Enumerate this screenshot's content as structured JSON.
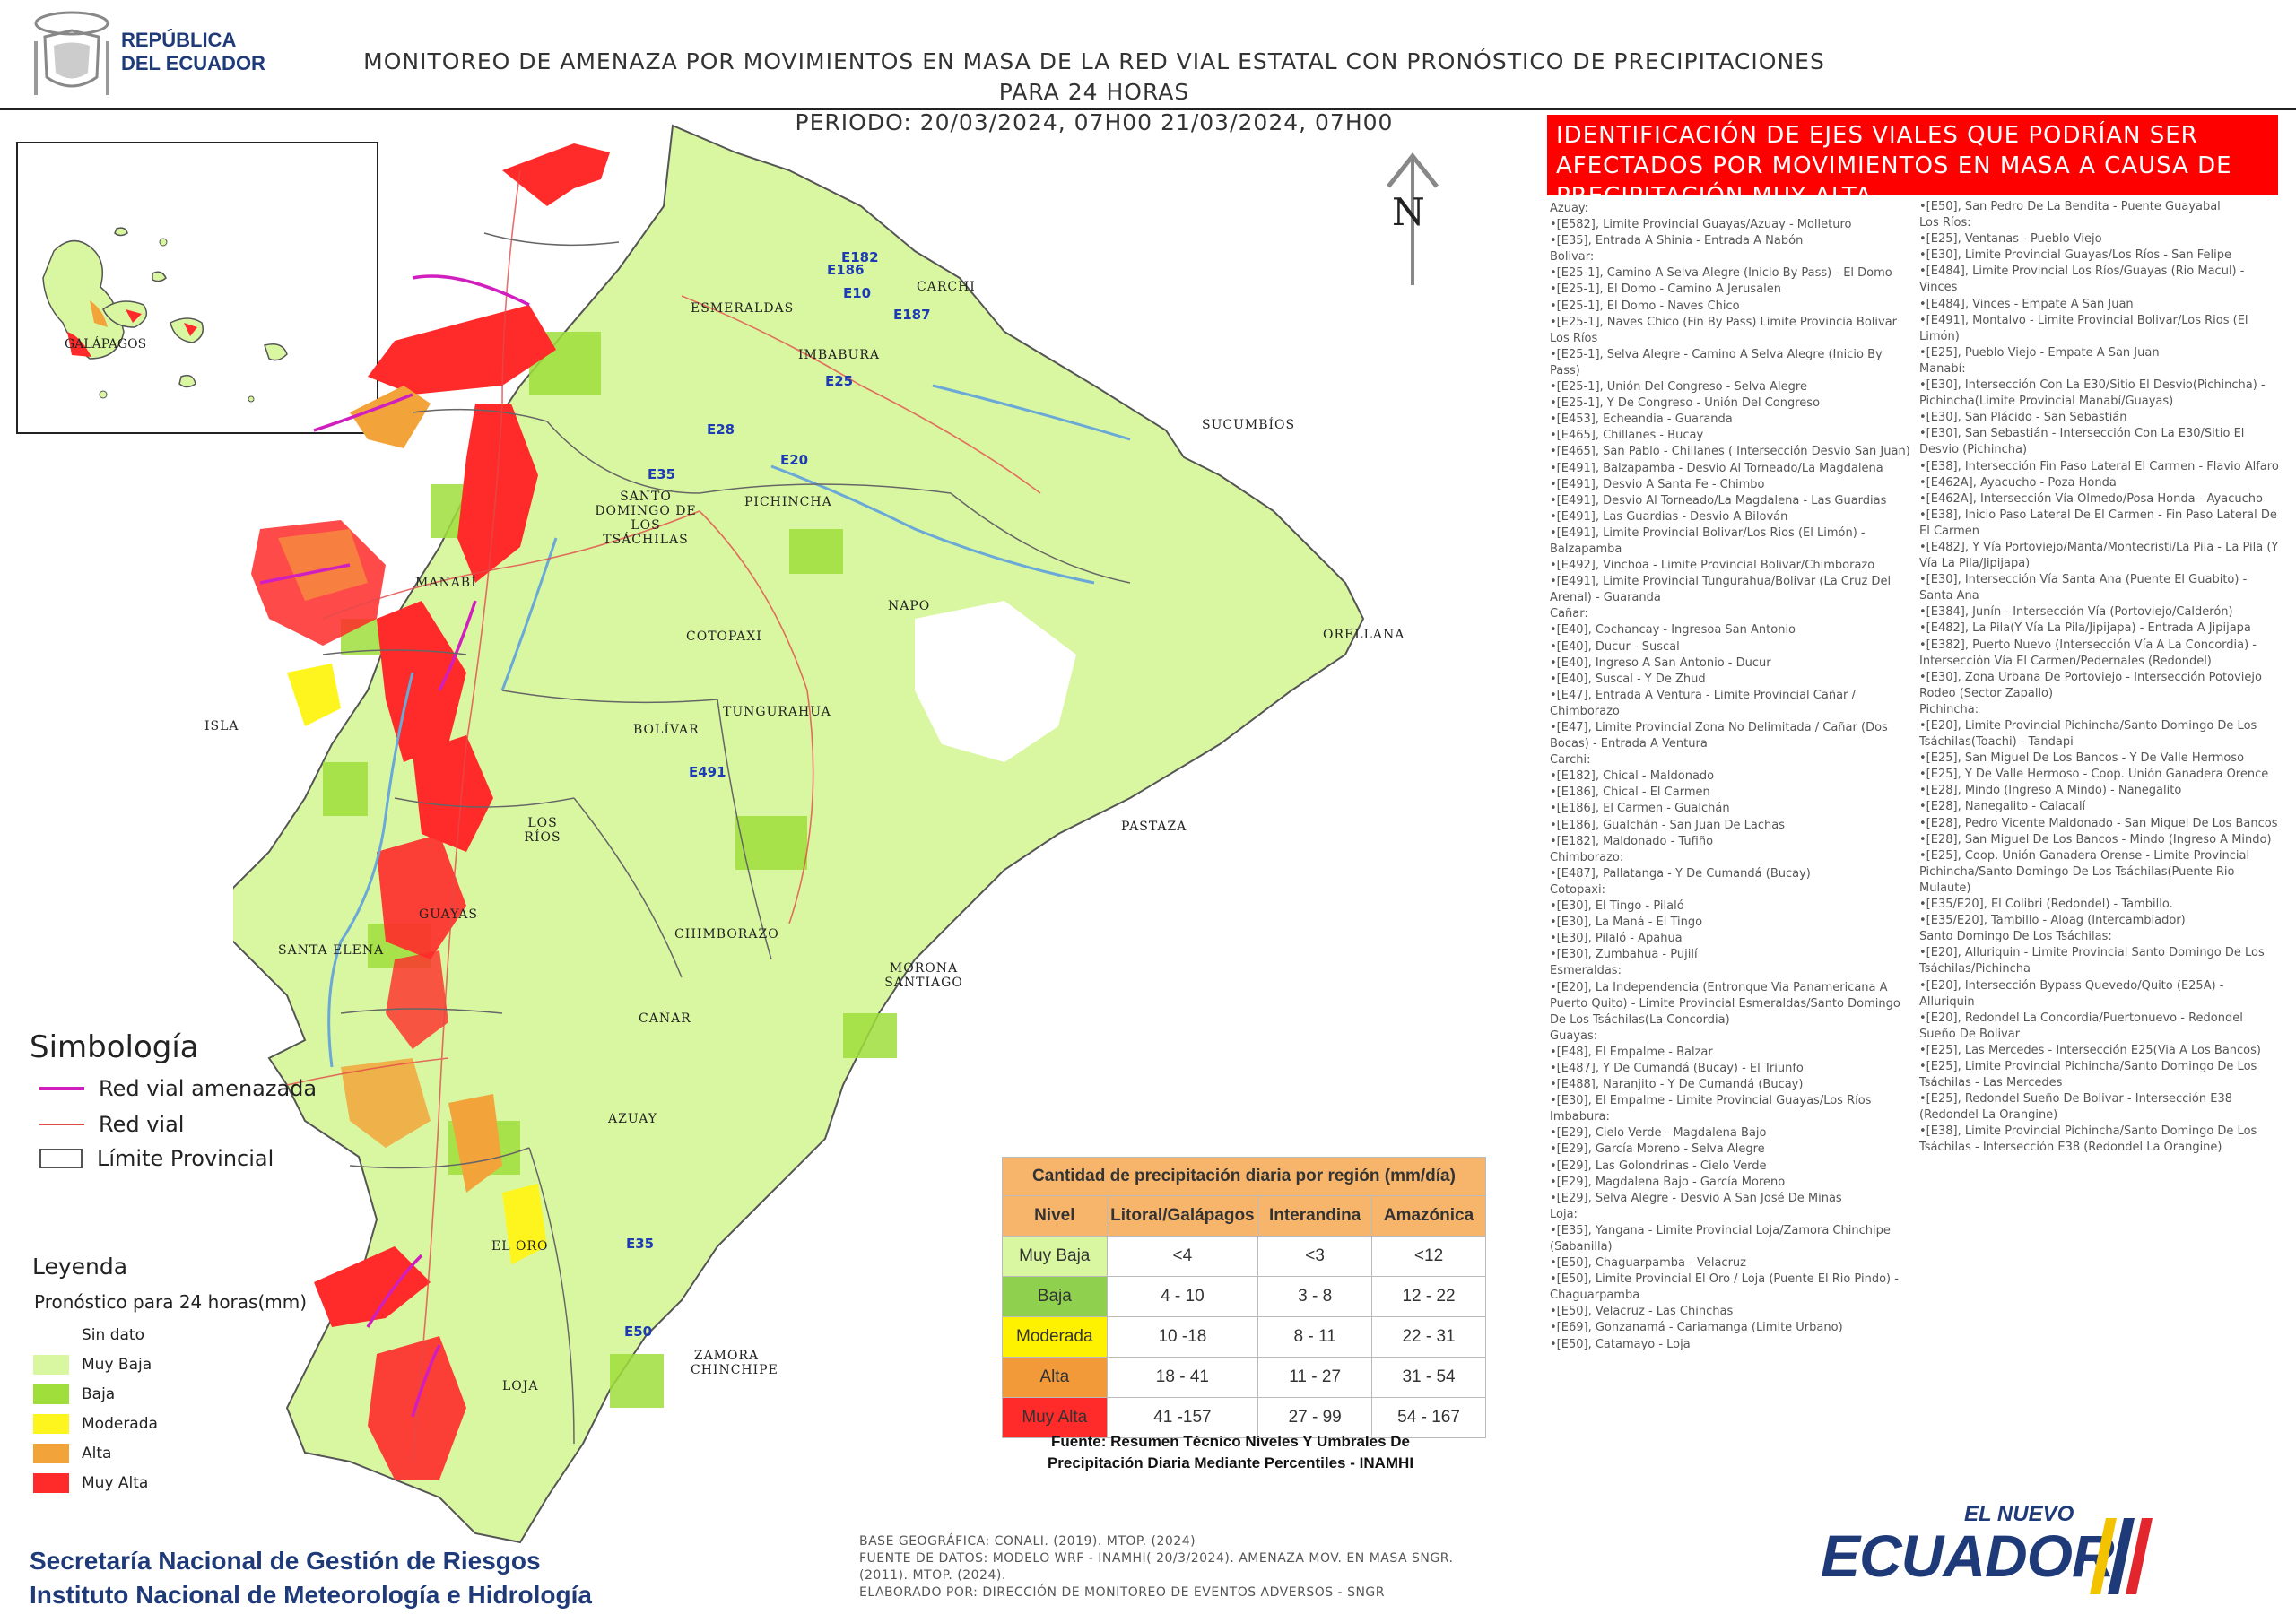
{
  "header": {
    "country_line1": "REPÚBLICA",
    "country_line2": "DEL ECUADOR",
    "title_line1": "MONITOREO DE AMENAZA POR MOVIMIENTOS EN MASA DE LA RED VIAL  ESTATAL  CON PRONÓSTICO  DE  PRECIPITACIONES PARA 24 HORAS",
    "title_line2": "PERIODO: 20/03/2024, 07H00 21/03/2024, 07H00"
  },
  "north_label": "N",
  "inset_label": "GALÁPAGOS",
  "provinces": [
    "ESMERALDAS",
    "CARCHI",
    "IMBABURA",
    "SUCUMBÍOS",
    "SANTO DOMINGO DE LOS TSÁCHILAS",
    "PICHINCHA",
    "MANABÍ",
    "NAPO",
    "ORELLANA",
    "COTOPAXI",
    "ISLA",
    "BOLÍVAR",
    "TUNGURAHUA",
    "LOS RÍOS",
    "PASTAZA",
    "SANTA ELENA",
    "GUAYAS",
    "CHIMBORAZO",
    "MORONA SANTIAGO",
    "CAÑAR",
    "AZUAY",
    "EL ORO",
    "LOJA",
    "ZAMORA CHINCHIPE"
  ],
  "road_labels": [
    "E182",
    "E186",
    "E10",
    "E187",
    "E28",
    "E35",
    "E20",
    "E491",
    "E25",
    "E50",
    "E35"
  ],
  "side_panel": {
    "title": "IDENTIFICACIÓN DE EJES VIALES QUE PODRÍAN SER AFECTADOS POR MOVIMIENTOS EN MASA A CAUSA DE PRECIPITACIÓN MUY ALTA",
    "col1": [
      "Azuay:",
      "•[E582], Limite Provincial Guayas/Azuay - Molleturo",
      "•[E35], Entrada A Shinia - Entrada A Nabón",
      "Bolivar:",
      "•[E25-1], Camino A Selva Alegre (Inicio By Pass) - El Domo",
      "•[E25-1], El Domo - Camino A Jerusalen",
      "•[E25-1], El Domo - Naves Chico",
      "•[E25-1], Naves Chico (Fin By Pass) Limite Provincia Bolivar Los Ríos",
      "•[E25-1], Selva Alegre - Camino A Selva Alegre (Inicio By Pass)",
      "•[E25-1], Unión Del Congreso - Selva  Alegre",
      "•[E25-1], Y De Congreso - Unión Del Congreso",
      "•[E453], Echeandia - Guaranda",
      "•[E465], Chillanes - Bucay",
      "•[E465], San Pablo - Chillanes ( Intersección Desvio San Juan)",
      "•[E491], Balzapamba - Desvio Al Torneado/La Magdalena",
      "•[E491], Desvio A Santa Fe - Chimbo",
      "•[E491], Desvio Al Torneado/La Magdalena - Las Guardias",
      "•[E491], Las Guardias - Desvio A Bilován",
      "•[E491], Limite Provincial Bolivar/Los Rios (El Limón) - Balzapamba",
      "•[E492], Vinchoa - Limite Provincial Bolivar/Chimborazo",
      "•[E491], Limite Provincial Tungurahua/Bolivar (La Cruz Del Arenal) - Guaranda",
      "Cañar:",
      "•[E40], Cochancay - Ingresoa San Antonio",
      "•[E40], Ducur - Suscal",
      "•[E40], Ingreso A San Antonio - Ducur",
      "•[E40], Suscal - Y De Zhud",
      "•[E47], Entrada A Ventura -  Limite Provincial Cañar / Chimborazo",
      "•[E47], Limite Provincial Zona No Delimitada / Cañar (Dos Bocas) - Entrada  A Ventura",
      "Carchi:",
      "•[E182], Chical - Maldonado",
      "•[E186], Chical - El Carmen",
      "•[E186], El Carmen - Gualchán",
      "•[E186], Gualchán - San Juan De Lachas",
      "•[E182], Maldonado - Tufiño",
      "Chimborazo:",
      "•[E487], Pallatanga - Y De Cumandá (Bucay)",
      "Cotopaxi:",
      "•[E30], El Tingo - Pilaló",
      "•[E30], La Maná - El Tingo",
      "•[E30], Pilaló - Apahua",
      "•[E30], Zumbahua - Pujilí",
      "Esmeraldas:",
      "•[E20], La Independencia (Entronque Via Panamericana A Puerto Quito) - Limite Provincial Esmeraldas/Santo Domingo De Los Tsáchilas(La Concordia)",
      "Guayas:",
      "•[E48], El Empalme - Balzar",
      "•[E487], Y De Cumandá (Bucay) - El Triunfo",
      "•[E488], Naranjito - Y De Cumandá (Bucay)",
      "•[E30], El Empalme - Limite Provincial Guayas/Los Ríos",
      "Imbabura:",
      "•[E29], Cielo Verde - Magdalena Bajo",
      "•[E29], García Moreno - Selva  Alegre",
      "•[E29], Las Golondrinas - Cielo Verde",
      "•[E29], Magdalena Bajo - García Moreno",
      "•[E29], Selva  Alegre - Desvio  A San José De Minas",
      "Loja:",
      "•[E35], Yangana - Limite Provincial Loja/Zamora Chinchipe (Sabanilla)",
      "•[E50], Chaguarpamba - Velacruz",
      "•[E50], Limite Provincial El Oro / Loja (Puente El Rio Pindo) - Chaguarpamba",
      "•[E50], Velacruz - Las Chinchas",
      "•[E69], Gonzanamá - Cariamanga (Limite Urbano)",
      "•[E50], Catamayo - Loja"
    ],
    "col2": [
      "•[E50], San Pedro De La Bendita - Puente Guayabal",
      "Los Ríos:",
      "•[E25], Ventanas - Pueblo Viejo",
      "•[E30], Limite Provincial Guayas/Los Ríos - San Felipe",
      "•[E484], Limite Provincial Los Ríos/Guayas (Rio Macul) - Vinces",
      "•[E484], Vinces - Empate A San Juan",
      "•[E491], Montalvo - Limite Provincial Bolivar/Los Rios (El Limón)",
      "•[E25], Pueblo Viejo - Empate A San Juan",
      "Manabí:",
      "•[E30], Intersección Con La E30/Sitio El Desvio(Pichincha) - Pichincha(Limite Provincial Manabí/Guayas)",
      "•[E30], San Plácido - San Sebastián",
      "•[E30], San Sebastián - Intersección Con La E30/Sitio El Desvio (Pichincha)",
      "•[E38], Intersección Fin Paso Lateral El Carmen - Flavio Alfaro",
      "•[E462A], Ayacucho - Poza Honda",
      "•[E462A], Intersección Vía Olmedo/Posa Honda - Ayacucho",
      "•[E38], Inicio Paso Lateral De El Carmen - Fin Paso Lateral De El Carmen",
      "•[E482], Y Vía Portoviejo/Manta/Montecristi/La Pila - La Pila (Y Vía La Pila/Jipijapa)",
      "•[E30], Intersección Vía Santa Ana (Puente El Guabito) - Santa Ana",
      "•[E384], Junín - Intersección Vía (Portoviejo/Calderón)",
      "•[E482], La Pila(Y Vía La Pila/Jipijapa) - Entrada A Jipijapa",
      "•[E382], Puerto Nuevo (Intersección Vía A La Concordia) - Intersección Vía El Carmen/Pedernales (Redondel)",
      "•[E30], Zona Urbana De Portoviejo - Intersección Potoviejo Rodeo (Sector Zapallo)",
      "Pichincha:",
      "•[E20], Limite Provincial Pichincha/Santo Domingo De Los Tsáchilas(Toachi) - Tandapi",
      "•[E25], San Miguel De Los Bancos - Y De Valle Hermoso",
      "•[E25], Y De Valle Hermoso - Coop. Unión Ganadera Orence",
      "•[E28], Mindo (Ingreso A Mindo) - Nanegalito",
      "•[E28], Nanegalito - Calacalí",
      "•[E28], Pedro Vicente Maldonado - San Miguel De Los Bancos",
      "•[E28], San Miguel De Los Bancos - Mindo (Ingreso A Mindo)",
      "•[E25], Coop. Unión Ganadera Orense - Limite Provincial Pichincha/Santo Domingo De Los Tsáchilas(Puente Rio Mulaute)",
      "•[E35/E20], El Colibri (Redondel) - Tambillo.",
      "•[E35/E20], Tambillo - Aloag (Intercambiador)",
      "Santo Domingo De Los Tsáchilas:",
      "•[E20], Alluriquin - Limite Provincial Santo Domingo De Los Tsáchilas/Pichincha",
      "•[E20], Intersección Bypass Quevedo/Quito (E25A) - Alluriquin",
      "•[E20], Redondel La Concordia/Puertonuevo - Redondel Sueño De Bolivar",
      "•[E25], Las Mercedes - Intersección E25(Via A Los Bancos)",
      "•[E25], Limite Provincial Pichincha/Santo Domingo De Los Tsáchilas - Las Mercedes",
      "•[E25], Redondel Sueño De Bolivar - Intersección E38 (Redondel La Orangine)",
      "•[E38], Limite Provincial Pichincha/Santo Domingo De Los Tsáchilas - Intersección E38 (Redondel La Orangine)"
    ]
  },
  "simbologia": {
    "title": "Simbología",
    "items": [
      "Red vial amenazada",
      "Red vial",
      "Límite Provincial"
    ],
    "colors": [
      "#d11fbf",
      "#e34a4a",
      "#555555"
    ]
  },
  "leyenda": {
    "title": "Leyenda",
    "subtitle": "Pronóstico para 24 horas(mm)",
    "items": [
      {
        "label": "Sin dato",
        "color": "#ffffff"
      },
      {
        "label": "Muy Baja",
        "color": "#d9f7a1"
      },
      {
        "label": "Baja",
        "color": "#9fde3b"
      },
      {
        "label": "Moderada",
        "color": "#fff51e"
      },
      {
        "label": "Alta",
        "color": "#f2a43a"
      },
      {
        "label": "Muy Alta",
        "color": "#ff2a2a"
      }
    ]
  },
  "precip_table": {
    "title": "Cantidad de precipitación diaria por región (mm/día)",
    "headers": [
      "Nivel",
      "Litoral/Galápagos",
      "Interandina",
      "Amazónica"
    ],
    "rows": [
      {
        "nivel": "Muy Baja",
        "color": "#d9f7a1",
        "values": [
          "<4",
          "<3",
          "<12"
        ]
      },
      {
        "nivel": "Baja",
        "color": "#8fd14f",
        "values": [
          "4 - 10",
          "3 - 8",
          "12 - 22"
        ]
      },
      {
        "nivel": "Moderada",
        "color": "#fff200",
        "values": [
          "10 -18",
          "8 - 11",
          "22 - 31"
        ]
      },
      {
        "nivel": "Alta",
        "color": "#f29a3a",
        "values": [
          "18 - 41",
          "11 - 27",
          "31 - 54"
        ]
      },
      {
        "nivel": "Muy Alta",
        "color": "#ff2a2a",
        "values": [
          "41 -157",
          "27 - 99",
          "54 - 167"
        ]
      }
    ],
    "source_line1": "Fuente: Resumen Técnico Niveles Y Umbrales De",
    "source_line2": "Precipitación Diaria Mediante Percentiles - INAMHI"
  },
  "footer": {
    "org_line1": "Secretaría Nacional de Gestión de Riesgos",
    "org_line2": "Instituto Nacional de Meteorología e Hidrología",
    "credit1": "BASE GEOGRÁFICA: CONALI. (2019). MTOP. (2024)",
    "credit2": "FUENTE DE DATOS: MODELO WRF - INAMHI( 20/3/2024).  AMENAZA MOV. EN MASA SNGR.",
    "credit3": "(2011). MTOP. (2024).",
    "credit4": "ELABORADO POR: DIRECCIÓN DE MONITOREO DE EVENTOS ADVERSOS - SNGR",
    "brand_top": "EL NUEVO",
    "brand_main": "ECUADOR"
  }
}
